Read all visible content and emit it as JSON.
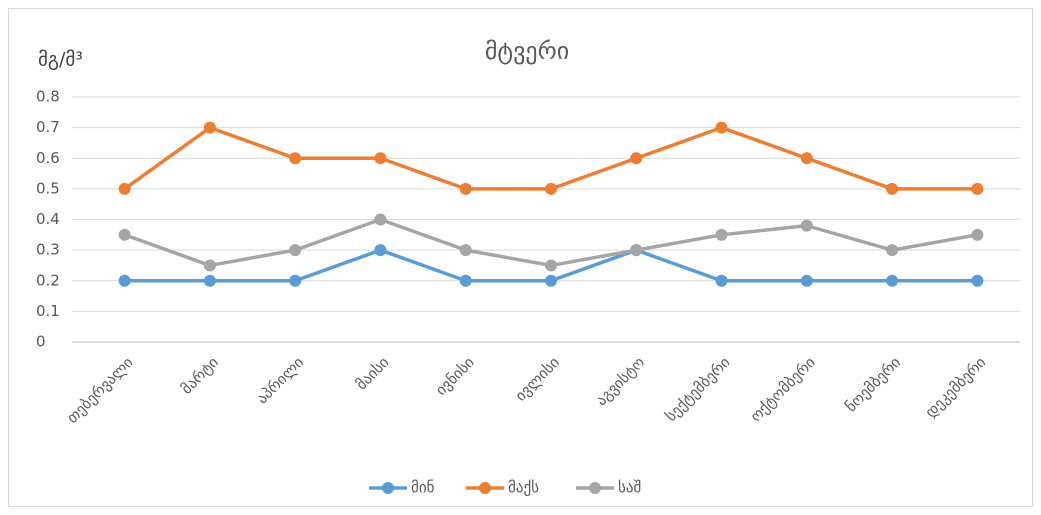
{
  "chart_data": {
    "type": "line",
    "title": "მტვერი",
    "y_label": "მგ/მ³",
    "categories": [
      "თებერვალი",
      "მარტი",
      "აპრილი",
      "მაისი",
      "ივნისი",
      "ივლისი",
      "აგვისტო",
      "სექტემბერი",
      "ოქტომბერი",
      "ნოემბერი",
      "დეკემბერი"
    ],
    "series": [
      {
        "name": "მინ",
        "color": "#5b9bd5",
        "values": [
          0.2,
          0.2,
          0.2,
          0.3,
          0.2,
          0.2,
          0.3,
          0.2,
          0.2,
          0.2,
          0.2
        ]
      },
      {
        "name": "მაქს",
        "color": "#ed7d31",
        "values": [
          0.5,
          0.7,
          0.6,
          0.6,
          0.5,
          0.5,
          0.6,
          0.7,
          0.6,
          0.5,
          0.5
        ]
      },
      {
        "name": "საშ",
        "color": "#a5a5a5",
        "values": [
          0.35,
          0.25,
          0.3,
          0.4,
          0.3,
          0.25,
          0.3,
          0.35,
          0.38,
          0.3,
          0.35
        ]
      }
    ],
    "ylim": [
      0,
      0.8
    ],
    "yticks": [
      0,
      0.1,
      0.2,
      0.3,
      0.4,
      0.5,
      0.6,
      0.7,
      0.8
    ],
    "grid": true,
    "legend": "bottom"
  }
}
